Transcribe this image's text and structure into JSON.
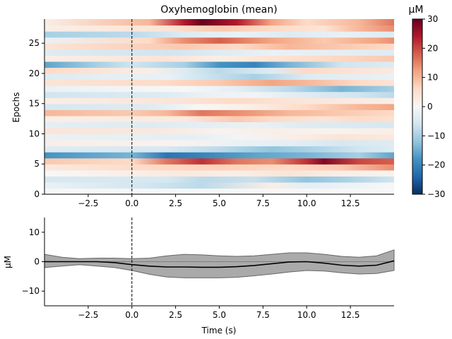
{
  "chart_data": [
    {
      "type": "heatmap",
      "title": "Oxyhemoglobin (mean)",
      "xlabel": "",
      "ylabel": "Epochs",
      "xlim": [
        -5,
        15
      ],
      "ylim": [
        0,
        29
      ],
      "xticks": [
        "−2.5",
        "0.0",
        "2.5",
        "5.0",
        "7.5",
        "10.0",
        "12.5"
      ],
      "xtick_values": [
        -2.5,
        0,
        2.5,
        5,
        7.5,
        10,
        12.5
      ],
      "yticks": [
        "0",
        "5",
        "10",
        "15",
        "20",
        "25"
      ],
      "ytick_values": [
        0,
        5,
        10,
        15,
        20,
        25
      ],
      "event_marker_x": 0,
      "colorbar": {
        "label": "µM",
        "range": [
          -30,
          30
        ],
        "ticks": [
          "30",
          "20",
          "10",
          "0",
          "−10",
          "−20",
          "−30"
        ],
        "tick_values": [
          30,
          20,
          10,
          0,
          -10,
          -20,
          -30
        ],
        "colormap": [
          "#053061",
          "#2166ac",
          "#4393c3",
          "#92c5de",
          "#d1e5f0",
          "#f7f7f7",
          "#fddbc7",
          "#f4a582",
          "#d6604d",
          "#b2182b",
          "#67001f"
        ]
      },
      "epochs": [
        {
          "epoch": 0,
          "points": [
            [
              -5,
              0
            ],
            [
              15,
              0
            ]
          ]
        },
        {
          "epoch": 1,
          "points": [
            [
              -5,
              -2
            ],
            [
              1,
              -6
            ],
            [
              4,
              -8
            ],
            [
              8,
              2
            ],
            [
              10,
              -3
            ],
            [
              15,
              0
            ]
          ]
        },
        {
          "epoch": 2,
          "points": [
            [
              -5,
              -5
            ],
            [
              2,
              -5
            ],
            [
              4,
              -8
            ],
            [
              7,
              -7
            ],
            [
              10,
              -12
            ],
            [
              12,
              -10
            ],
            [
              15,
              -6
            ]
          ]
        },
        {
          "epoch": 3,
          "points": [
            [
              -5,
              0
            ],
            [
              3,
              3
            ],
            [
              6,
              2
            ],
            [
              9,
              4
            ],
            [
              12,
              2
            ],
            [
              15,
              1
            ]
          ]
        },
        {
          "epoch": 4,
          "points": [
            [
              -5,
              3
            ],
            [
              1,
              6
            ],
            [
              5,
              7
            ],
            [
              9,
              6
            ],
            [
              12,
              8
            ],
            [
              15,
              14
            ]
          ]
        },
        {
          "epoch": 5,
          "points": [
            [
              -5,
              8
            ],
            [
              0,
              6
            ],
            [
              2,
              16
            ],
            [
              4,
              22
            ],
            [
              6,
              16
            ],
            [
              8,
              14
            ],
            [
              10,
              22
            ],
            [
              11,
              28
            ],
            [
              13,
              20
            ],
            [
              15,
              18
            ]
          ]
        },
        {
          "epoch": 6,
          "points": [
            [
              -5,
              -18
            ],
            [
              0,
              -14
            ],
            [
              2,
              -22
            ],
            [
              4,
              -20
            ],
            [
              7,
              -16
            ],
            [
              10,
              -14
            ],
            [
              13,
              -10
            ],
            [
              15,
              -16
            ]
          ]
        },
        {
          "epoch": 7,
          "points": [
            [
              -5,
              -4
            ],
            [
              2,
              -5
            ],
            [
              5,
              -8
            ],
            [
              8,
              -12
            ],
            [
              10,
              -10
            ],
            [
              13,
              -6
            ],
            [
              15,
              -4
            ]
          ]
        },
        {
          "epoch": 8,
          "points": [
            [
              -5,
              2
            ],
            [
              3,
              1
            ],
            [
              6,
              -2
            ],
            [
              9,
              -3
            ],
            [
              12,
              -5
            ],
            [
              15,
              -4
            ]
          ]
        },
        {
          "epoch": 9,
          "points": [
            [
              -5,
              -2
            ],
            [
              3,
              -3
            ],
            [
              6,
              -1
            ],
            [
              9,
              2
            ],
            [
              12,
              4
            ],
            [
              15,
              3
            ]
          ]
        },
        {
          "epoch": 10,
          "points": [
            [
              -5,
              4
            ],
            [
              2,
              3
            ],
            [
              5,
              1
            ],
            [
              8,
              2
            ],
            [
              11,
              1
            ],
            [
              15,
              2
            ]
          ]
        },
        {
          "epoch": 11,
          "points": [
            [
              -5,
              -3
            ],
            [
              1,
              -4
            ],
            [
              4,
              -3
            ],
            [
              7,
              -2
            ],
            [
              10,
              -4
            ],
            [
              15,
              -5
            ]
          ]
        },
        {
          "epoch": 12,
          "points": [
            [
              -5,
              2
            ],
            [
              3,
              3
            ],
            [
              6,
              8
            ],
            [
              8,
              6
            ],
            [
              11,
              4
            ],
            [
              13,
              6
            ],
            [
              15,
              5
            ]
          ]
        },
        {
          "epoch": 13,
          "points": [
            [
              -5,
              10
            ],
            [
              0,
              8
            ],
            [
              2,
              10
            ],
            [
              4,
              16
            ],
            [
              6,
              14
            ],
            [
              9,
              10
            ],
            [
              12,
              8
            ],
            [
              15,
              6
            ]
          ]
        },
        {
          "epoch": 14,
          "points": [
            [
              -5,
              -5
            ],
            [
              1,
              -4
            ],
            [
              4,
              0
            ],
            [
              7,
              2
            ],
            [
              10,
              6
            ],
            [
              13,
              10
            ],
            [
              15,
              12
            ]
          ]
        },
        {
          "epoch": 15,
          "points": [
            [
              -5,
              2
            ],
            [
              3,
              4
            ],
            [
              6,
              6
            ],
            [
              9,
              4
            ],
            [
              12,
              3
            ],
            [
              15,
              2
            ]
          ]
        },
        {
          "epoch": 16,
          "points": [
            [
              -5,
              -6
            ],
            [
              2,
              -4
            ],
            [
              4,
              -2
            ],
            [
              7,
              -1
            ],
            [
              10,
              -4
            ],
            [
              13,
              -6
            ],
            [
              15,
              -8
            ]
          ]
        },
        {
          "epoch": 17,
          "points": [
            [
              -5,
              -2
            ],
            [
              3,
              0
            ],
            [
              6,
              -3
            ],
            [
              9,
              -8
            ],
            [
              12,
              -14
            ],
            [
              15,
              -10
            ]
          ]
        },
        {
          "epoch": 18,
          "points": [
            [
              -5,
              4
            ],
            [
              2,
              6
            ],
            [
              5,
              8
            ],
            [
              8,
              12
            ],
            [
              10,
              10
            ],
            [
              13,
              6
            ],
            [
              15,
              4
            ]
          ]
        },
        {
          "epoch": 19,
          "points": [
            [
              -5,
              -4
            ],
            [
              2,
              -2
            ],
            [
              4,
              -6
            ],
            [
              7,
              -10
            ],
            [
              10,
              -4
            ],
            [
              15,
              -2
            ]
          ]
        },
        {
          "epoch": 20,
          "points": [
            [
              -5,
              6
            ],
            [
              1,
              2
            ],
            [
              3,
              -4
            ],
            [
              5,
              -8
            ],
            [
              8,
              -4
            ],
            [
              10,
              6
            ],
            [
              13,
              4
            ],
            [
              15,
              3
            ]
          ]
        },
        {
          "epoch": 21,
          "points": [
            [
              -5,
              -16
            ],
            [
              -2,
              -10
            ],
            [
              0,
              -6
            ],
            [
              3,
              -10
            ],
            [
              5,
              -18
            ],
            [
              7,
              -20
            ],
            [
              9,
              -14
            ],
            [
              12,
              -6
            ],
            [
              15,
              -4
            ]
          ]
        },
        {
          "epoch": 22,
          "points": [
            [
              -5,
              2
            ],
            [
              2,
              4
            ],
            [
              5,
              2
            ],
            [
              8,
              4
            ],
            [
              11,
              6
            ],
            [
              15,
              8
            ]
          ]
        },
        {
          "epoch": 23,
          "points": [
            [
              -5,
              -4
            ],
            [
              2,
              -6
            ],
            [
              5,
              -4
            ],
            [
              8,
              -2
            ],
            [
              12,
              -3
            ],
            [
              15,
              -4
            ]
          ]
        },
        {
          "epoch": 24,
          "points": [
            [
              -5,
              4
            ],
            [
              3,
              8
            ],
            [
              6,
              6
            ],
            [
              9,
              10
            ],
            [
              12,
              8
            ],
            [
              15,
              6
            ]
          ]
        },
        {
          "epoch": 25,
          "points": [
            [
              -5,
              -2
            ],
            [
              1,
              6
            ],
            [
              3,
              14
            ],
            [
              5,
              18
            ],
            [
              8,
              12
            ],
            [
              11,
              8
            ],
            [
              14,
              12
            ],
            [
              15,
              14
            ]
          ]
        },
        {
          "epoch": 26,
          "points": [
            [
              -5,
              -10
            ],
            [
              0,
              -8
            ],
            [
              3,
              -4
            ],
            [
              6,
              -2
            ],
            [
              9,
              -4
            ],
            [
              12,
              -2
            ],
            [
              15,
              -4
            ]
          ]
        },
        {
          "epoch": 27,
          "points": [
            [
              -5,
              2
            ],
            [
              2,
              4
            ],
            [
              5,
              8
            ],
            [
              8,
              6
            ],
            [
              11,
              4
            ],
            [
              13,
              10
            ],
            [
              15,
              14
            ]
          ]
        },
        {
          "epoch": 28,
          "points": [
            [
              -5,
              2
            ],
            [
              1,
              10
            ],
            [
              3,
              24
            ],
            [
              4,
              30
            ],
            [
              6,
              24
            ],
            [
              8,
              12
            ],
            [
              10,
              6
            ],
            [
              13,
              10
            ],
            [
              15,
              16
            ]
          ]
        }
      ]
    },
    {
      "type": "area",
      "title": "",
      "xlabel": "Time (s)",
      "ylabel": "µM",
      "xlim": [
        -5,
        15
      ],
      "ylim": [
        -15,
        15
      ],
      "xticks": [
        "−2.5",
        "0.0",
        "2.5",
        "5.0",
        "7.5",
        "10.0",
        "12.5"
      ],
      "xtick_values": [
        -2.5,
        0,
        2.5,
        5,
        7.5,
        10,
        12.5
      ],
      "yticks": [
        "−10",
        "0",
        "10"
      ],
      "ytick_values": [
        -10,
        0,
        10
      ],
      "event_marker_x": 0,
      "zero_line": true,
      "series": [
        {
          "name": "mean",
          "color": "#000000",
          "x": [
            -5,
            -4,
            -3,
            -2,
            -1,
            0,
            1,
            2,
            3,
            4,
            5,
            6,
            7,
            8,
            9,
            10,
            11,
            12,
            13,
            14,
            15
          ],
          "values": [
            0,
            0,
            0,
            0,
            -0.3,
            -1.0,
            -1.5,
            -1.8,
            -1.8,
            -1.9,
            -1.9,
            -1.7,
            -1.3,
            -0.7,
            -0.1,
            0,
            -0.5,
            -1.2,
            -1.5,
            -1.2,
            0.3
          ]
        }
      ],
      "band": {
        "name": "spread",
        "color": "#aaaaaa",
        "upper": [
          2.5,
          1.5,
          1.0,
          1.2,
          1.2,
          1.0,
          1.2,
          2.0,
          2.5,
          2.3,
          2.0,
          1.8,
          2.0,
          2.5,
          3.0,
          3.0,
          2.5,
          1.8,
          1.5,
          2.0,
          4.0
        ],
        "lower": [
          -2.0,
          -1.5,
          -1.0,
          -1.5,
          -2.0,
          -3.0,
          -4.3,
          -5.2,
          -5.5,
          -5.5,
          -5.5,
          -5.3,
          -4.8,
          -4.2,
          -3.5,
          -3.0,
          -3.2,
          -3.8,
          -4.2,
          -4.0,
          -3.0
        ]
      }
    }
  ]
}
